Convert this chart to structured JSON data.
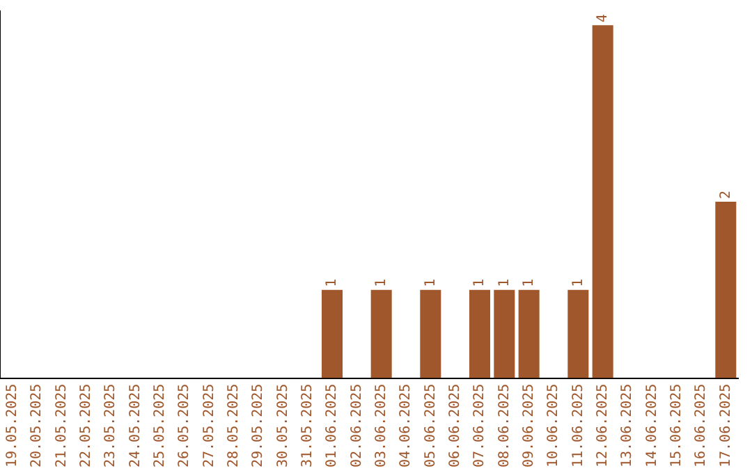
{
  "chart_data": {
    "type": "bar",
    "categories": [
      "19.05.2025",
      "20.05.2025",
      "21.05.2025",
      "22.05.2025",
      "23.05.2025",
      "24.05.2025",
      "25.05.2025",
      "26.05.2025",
      "27.05.2025",
      "28.05.2025",
      "29.05.2025",
      "30.05.2025",
      "31.05.2025",
      "01.06.2025",
      "02.06.2025",
      "03.06.2025",
      "04.06.2025",
      "05.06.2025",
      "06.06.2025",
      "07.06.2025",
      "08.06.2025",
      "09.06.2025",
      "10.06.2025",
      "11.06.2025",
      "12.06.2025",
      "13.06.2025",
      "14.06.2025",
      "15.06.2025",
      "16.06.2025",
      "17.06.2025"
    ],
    "values": [
      null,
      null,
      null,
      null,
      null,
      null,
      null,
      null,
      null,
      null,
      null,
      null,
      null,
      1,
      null,
      1,
      null,
      1,
      null,
      1,
      1,
      1,
      null,
      1,
      4,
      null,
      null,
      null,
      null,
      2
    ],
    "data_labels": true,
    "color": "#a0572b",
    "grid": false,
    "legend": false,
    "tick_labels": "x"
  }
}
